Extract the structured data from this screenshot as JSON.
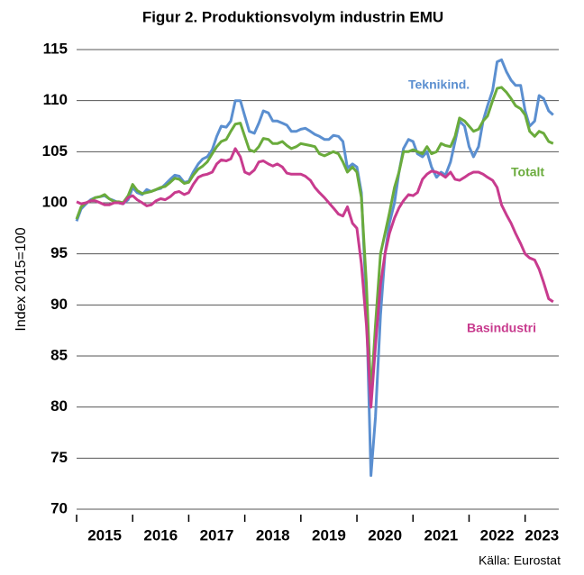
{
  "chart_data": {
    "type": "line",
    "title": "Figur 2. Produktionsvolym industrin EMU",
    "y_label": "Index 2015=100",
    "source": "Källa: Eurostat",
    "xlim": [
      2015,
      2023.6
    ],
    "xticks": [
      2015,
      2016,
      2017,
      2018,
      2019,
      2020,
      2021,
      2022,
      2023
    ],
    "ylim": [
      70,
      115
    ],
    "yticks": [
      70,
      75,
      80,
      85,
      90,
      95,
      100,
      105,
      110,
      115
    ],
    "grid": true,
    "x": [
      2015,
      2015.08,
      2015.17,
      2015.25,
      2015.33,
      2015.42,
      2015.5,
      2015.58,
      2015.67,
      2015.75,
      2015.83,
      2015.92,
      2016,
      2016.08,
      2016.17,
      2016.25,
      2016.33,
      2016.42,
      2016.5,
      2016.58,
      2016.67,
      2016.75,
      2016.83,
      2016.92,
      2017,
      2017.08,
      2017.17,
      2017.25,
      2017.33,
      2017.42,
      2017.5,
      2017.58,
      2017.67,
      2017.75,
      2017.83,
      2017.92,
      2018,
      2018.08,
      2018.17,
      2018.25,
      2018.33,
      2018.42,
      2018.5,
      2018.58,
      2018.67,
      2018.75,
      2018.83,
      2018.92,
      2019,
      2019.08,
      2019.17,
      2019.25,
      2019.33,
      2019.42,
      2019.5,
      2019.58,
      2019.67,
      2019.75,
      2019.83,
      2019.92,
      2020,
      2020.08,
      2020.17,
      2020.25,
      2020.33,
      2020.42,
      2020.5,
      2020.58,
      2020.67,
      2020.75,
      2020.83,
      2020.92,
      2021,
      2021.08,
      2021.17,
      2021.25,
      2021.33,
      2021.42,
      2021.5,
      2021.58,
      2021.67,
      2021.75,
      2021.83,
      2021.92,
      2022,
      2022.08,
      2022.17,
      2022.25,
      2022.33,
      2022.42,
      2022.5,
      2022.58,
      2022.67,
      2022.75,
      2022.83,
      2022.92,
      2023,
      2023.08,
      2023.17,
      2023.25,
      2023.33,
      2023.42,
      2023.5
    ],
    "series": [
      {
        "name": "Teknikind.",
        "color": "#5b8fd0",
        "values": [
          98.2,
          99.4,
          99.9,
          100.3,
          100.5,
          100.6,
          100.7,
          100.4,
          100.2,
          100.0,
          99.9,
          100.3,
          101.5,
          101.0,
          100.8,
          101.3,
          101.1,
          101.3,
          101.4,
          101.8,
          102.3,
          102.7,
          102.6,
          102.0,
          102.1,
          103.0,
          103.8,
          104.3,
          104.5,
          105.2,
          106.5,
          107.5,
          107.4,
          108.0,
          110.0,
          110.0,
          108.5,
          107.0,
          106.8,
          107.8,
          109.0,
          108.8,
          108.0,
          108.0,
          107.8,
          107.6,
          107.0,
          107.0,
          107.2,
          107.3,
          107.0,
          106.7,
          106.5,
          106.2,
          106.2,
          106.6,
          106.5,
          106.0,
          103.4,
          103.8,
          103.5,
          101.0,
          90.0,
          73.3,
          79.0,
          89.0,
          95.0,
          98.0,
          100.0,
          103.0,
          105.3,
          106.2,
          106.0,
          104.8,
          104.5,
          105.0,
          103.5,
          102.5,
          103.0,
          102.7,
          104.0,
          106.0,
          108.0,
          107.5,
          105.5,
          104.5,
          105.5,
          108.0,
          109.5,
          111.0,
          113.8,
          114.0,
          112.8,
          112.0,
          111.5,
          111.5,
          109.0,
          107.5,
          108.0,
          110.5,
          110.2,
          109.0,
          108.6
        ]
      },
      {
        "name": "Totalt",
        "color": "#6aab3c",
        "values": [
          98.4,
          99.6,
          100.0,
          100.2,
          100.5,
          100.6,
          100.8,
          100.4,
          100.1,
          100.1,
          100.0,
          100.7,
          101.8,
          101.2,
          100.9,
          101.0,
          101.1,
          101.3,
          101.5,
          101.6,
          102.0,
          102.4,
          102.3,
          101.9,
          102.0,
          102.7,
          103.3,
          103.6,
          104.0,
          104.8,
          105.5,
          106.0,
          106.2,
          107.0,
          107.7,
          107.8,
          106.5,
          105.2,
          105.0,
          105.5,
          106.3,
          106.2,
          105.8,
          105.8,
          106.0,
          105.6,
          105.3,
          105.5,
          105.8,
          105.7,
          105.6,
          105.5,
          104.8,
          104.6,
          104.8,
          105.0,
          104.8,
          104.0,
          103.0,
          103.5,
          103.0,
          100.5,
          92.0,
          81.0,
          88.0,
          95.0,
          97.0,
          99.0,
          101.5,
          103.0,
          105.0,
          105.0,
          105.2,
          105.0,
          104.8,
          105.5,
          104.8,
          105.0,
          105.8,
          105.6,
          105.5,
          106.5,
          108.3,
          108.0,
          107.5,
          107.0,
          107.2,
          108.0,
          108.5,
          110.0,
          111.2,
          111.3,
          110.8,
          110.2,
          109.5,
          109.2,
          108.6,
          107.0,
          106.5,
          107.0,
          106.8,
          106.0,
          105.8
        ]
      },
      {
        "name": "Basindustri",
        "color": "#c83b8e",
        "values": [
          100.1,
          99.9,
          100.0,
          100.2,
          100.2,
          100.0,
          99.8,
          99.8,
          100.0,
          100.0,
          99.9,
          100.5,
          100.7,
          100.3,
          100.0,
          99.7,
          99.8,
          100.2,
          100.4,
          100.3,
          100.6,
          101.0,
          101.1,
          100.8,
          101.0,
          101.8,
          102.5,
          102.7,
          102.8,
          103.0,
          103.8,
          104.2,
          104.1,
          104.3,
          105.3,
          104.5,
          103.0,
          102.8,
          103.2,
          104.0,
          104.1,
          103.8,
          103.6,
          103.8,
          103.5,
          102.9,
          102.8,
          102.8,
          102.8,
          102.6,
          102.2,
          101.5,
          101.0,
          100.5,
          100.0,
          99.5,
          98.9,
          98.7,
          99.6,
          98.0,
          97.5,
          94.0,
          88.0,
          80.0,
          86.0,
          92.0,
          95.0,
          97.0,
          98.5,
          99.5,
          100.2,
          100.8,
          100.7,
          101.0,
          102.3,
          102.8,
          103.1,
          103.0,
          102.8,
          102.5,
          103.0,
          102.3,
          102.2,
          102.5,
          102.8,
          103.0,
          103.0,
          102.8,
          102.5,
          102.2,
          101.5,
          99.8,
          98.8,
          98.0,
          97.0,
          96.0,
          95.0,
          94.6,
          94.4,
          93.5,
          92.2,
          90.6,
          90.3
        ]
      }
    ]
  }
}
